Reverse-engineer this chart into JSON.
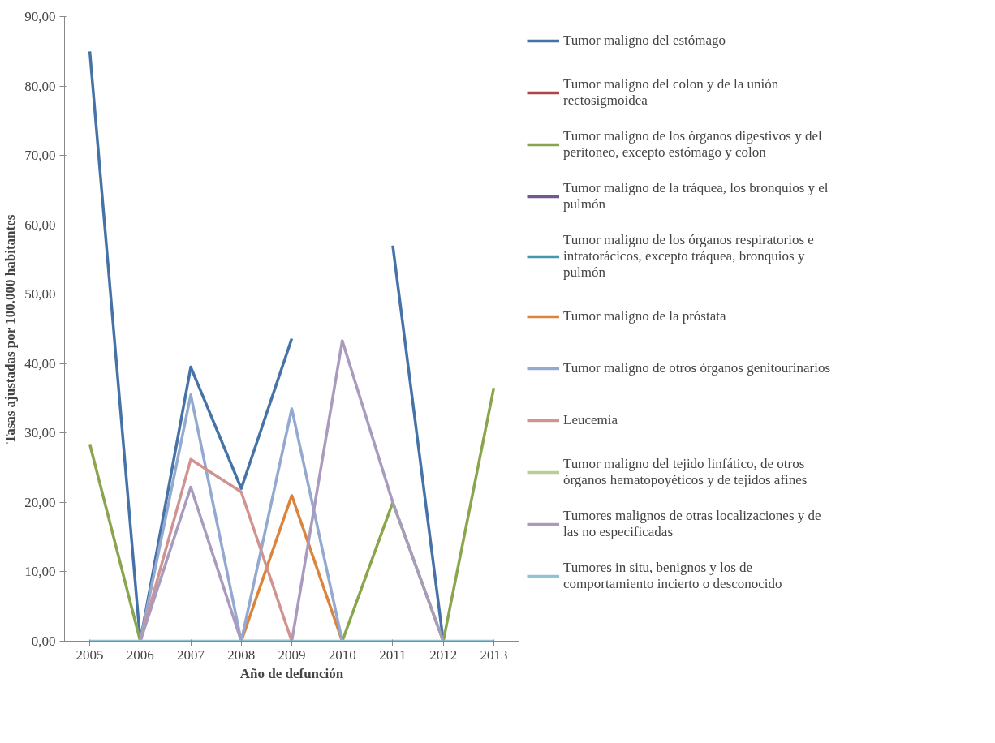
{
  "chart_data": {
    "type": "line",
    "xlabel": "Año de defunción",
    "ylabel": "Tasas ajustadas por 100.000 habitantes",
    "categories": [
      "2005",
      "2006",
      "2007",
      "2008",
      "2009",
      "2010",
      "2011",
      "2012",
      "2013"
    ],
    "ylim": [
      0,
      90
    ],
    "yticks": [
      {
        "value": 0,
        "label": "0,00"
      },
      {
        "value": 10,
        "label": "10,00"
      },
      {
        "value": 20,
        "label": "20,00"
      },
      {
        "value": 30,
        "label": "30,00"
      },
      {
        "value": 40,
        "label": "40,00"
      },
      {
        "value": 50,
        "label": "50,00"
      },
      {
        "value": 60,
        "label": "60,00"
      },
      {
        "value": 70,
        "label": "70,00"
      },
      {
        "value": 80,
        "label": "80,00"
      },
      {
        "value": 90,
        "label": "90,00"
      }
    ],
    "grid": false,
    "legend": "right",
    "marker": "none",
    "series": [
      {
        "name": "Tumor maligno del estómago",
        "color": "#4572a7",
        "values": [
          85,
          0,
          39.5,
          22,
          43.6,
          null,
          57,
          0,
          null
        ]
      },
      {
        "name": "Tumor maligno del colon y de la unión rectosigmoidea",
        "color": "#aa4643",
        "values": [
          null,
          null,
          null,
          null,
          null,
          null,
          null,
          null,
          null
        ]
      },
      {
        "name": "Tumor maligno de los órganos digestivos y del peritoneo, excepto estómago y colon",
        "color": "#89a54e",
        "values": [
          28.4,
          0,
          null,
          null,
          null,
          0,
          20,
          0,
          36.5
        ]
      },
      {
        "name": "Tumor maligno de la tráquea, los bronquios y el pulmón",
        "color": "#71588f",
        "values": [
          null,
          null,
          null,
          null,
          null,
          null,
          null,
          null,
          null
        ]
      },
      {
        "name": "Tumor maligno de los órganos respiratorios e intratorácicos, excepto tráquea, bronquios y pulmón",
        "color": "#4198af",
        "values": [
          null,
          null,
          null,
          null,
          null,
          null,
          null,
          null,
          null
        ]
      },
      {
        "name": "Tumor maligno de la próstata",
        "color": "#db843d",
        "values": [
          null,
          null,
          null,
          0,
          21,
          0,
          null,
          null,
          null
        ]
      },
      {
        "name": "Tumor maligno de otros órganos genitourinarios",
        "color": "#93a9cf",
        "values": [
          null,
          0,
          35.5,
          0,
          33.5,
          0,
          null,
          null,
          null
        ]
      },
      {
        "name": "Leucemia",
        "color": "#d19392",
        "values": [
          null,
          0,
          26.2,
          21.5,
          0,
          null,
          null,
          null,
          null
        ]
      },
      {
        "name": "Tumor maligno del tejido linfático, de otros órganos hematopoyéticos y de tejidos afines",
        "color": "#b9cd96",
        "values": [
          null,
          null,
          null,
          null,
          null,
          null,
          null,
          null,
          null
        ]
      },
      {
        "name": "Tumores malignos de otras localizaciones y de las no especificadas",
        "color": "#a99bbd",
        "values": [
          null,
          0,
          22.2,
          0,
          0,
          43.3,
          20,
          0,
          null
        ]
      },
      {
        "name": "Tumores in situ, benignos y los de comportamiento incierto o desconocido",
        "color": "#92c3d5",
        "values": [
          0,
          0,
          0,
          0,
          0,
          0,
          0,
          0,
          0
        ]
      }
    ]
  }
}
